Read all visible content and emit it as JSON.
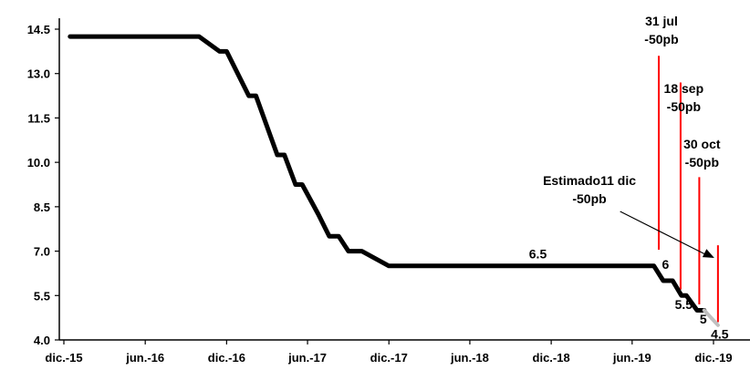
{
  "chart_data": {
    "type": "line",
    "title": "",
    "xlabel": "",
    "ylabel": "",
    "ylim": [
      4.0,
      14.5
    ],
    "y_ticks": [
      "14.5",
      "13.0",
      "11.5",
      "10.0",
      "8.5",
      "7.0",
      "5.5",
      "4.0"
    ],
    "y_tick_values": [
      14.5,
      13.0,
      11.5,
      10.0,
      8.5,
      7.0,
      5.5,
      4.0
    ],
    "x_ticks": [
      "dic.-15",
      "jun.-16",
      "dic.-16",
      "jun.-17",
      "dic.-17",
      "jun.-18",
      "dic.-18",
      "jun.-19",
      "dic.-19"
    ],
    "x_tick_dates": [
      "2015-12",
      "2016-06",
      "2016-12",
      "2017-06",
      "2017-12",
      "2018-06",
      "2018-12",
      "2019-06",
      "2019-12"
    ],
    "grid": false,
    "series": [
      {
        "color": "#000000",
        "points": [
          [
            "2015-12-15",
            14.25
          ],
          [
            "2016-09-30",
            14.25
          ],
          [
            "2016-11-15",
            13.75
          ],
          [
            "2016-12-01",
            13.75
          ],
          [
            "2017-01-20",
            12.25
          ],
          [
            "2017-02-05",
            12.25
          ],
          [
            "2017-03-25",
            10.25
          ],
          [
            "2017-04-10",
            10.25
          ],
          [
            "2017-05-05",
            9.25
          ],
          [
            "2017-05-20",
            9.25
          ],
          [
            "2017-06-25",
            8.25
          ],
          [
            "2017-07-20",
            7.5
          ],
          [
            "2017-08-10",
            7.5
          ],
          [
            "2017-09-01",
            7.0
          ],
          [
            "2017-10-01",
            7.0
          ],
          [
            "2017-12-01",
            6.5
          ],
          [
            "2019-07-20",
            6.5
          ],
          [
            "2019-08-10",
            6.0
          ],
          [
            "2019-08-31",
            6.0
          ],
          [
            "2019-09-20",
            5.5
          ],
          [
            "2019-10-01",
            5.5
          ],
          [
            "2019-10-25",
            5.0
          ],
          [
            "2019-11-10",
            5.0
          ]
        ]
      },
      {
        "color": "#bfbfbf",
        "points": [
          [
            "2019-11-10",
            5.0
          ],
          [
            "2019-12-11",
            4.5
          ]
        ]
      }
    ],
    "decision_lines": [
      {
        "date": "2019-07-31",
        "label_lines": [
          "31 jul",
          "-50pb"
        ],
        "y_top": 13.6,
        "y_bottom": 7.05
      },
      {
        "date": "2019-09-18",
        "label_lines": [
          "18 sep",
          "-50pb"
        ],
        "y_top": 12.7,
        "y_bottom": 5.7
      },
      {
        "date": "2019-10-30",
        "label_lines": [
          "30 oct",
          "-50pb"
        ],
        "y_top": 9.5,
        "y_bottom": 5.2
      },
      {
        "date": "2019-12-11",
        "label_lines": [
          "Estimado11 dic",
          "-50pb"
        ],
        "y_top": 7.2,
        "y_bottom": 4.6
      }
    ],
    "value_labels": [
      {
        "text": "6.5",
        "date": "2018-11-01",
        "y": 6.75
      },
      {
        "text": "6",
        "date": "2019-08-15",
        "y": 6.4
      },
      {
        "text": "5.5",
        "date": "2019-09-25",
        "y": 5.05
      },
      {
        "text": "5",
        "date": "2019-11-08",
        "y": 4.55
      },
      {
        "text": "4.5",
        "date": "2019-12-15",
        "y": 4.05
      }
    ],
    "accent_color": "#ff0000"
  }
}
